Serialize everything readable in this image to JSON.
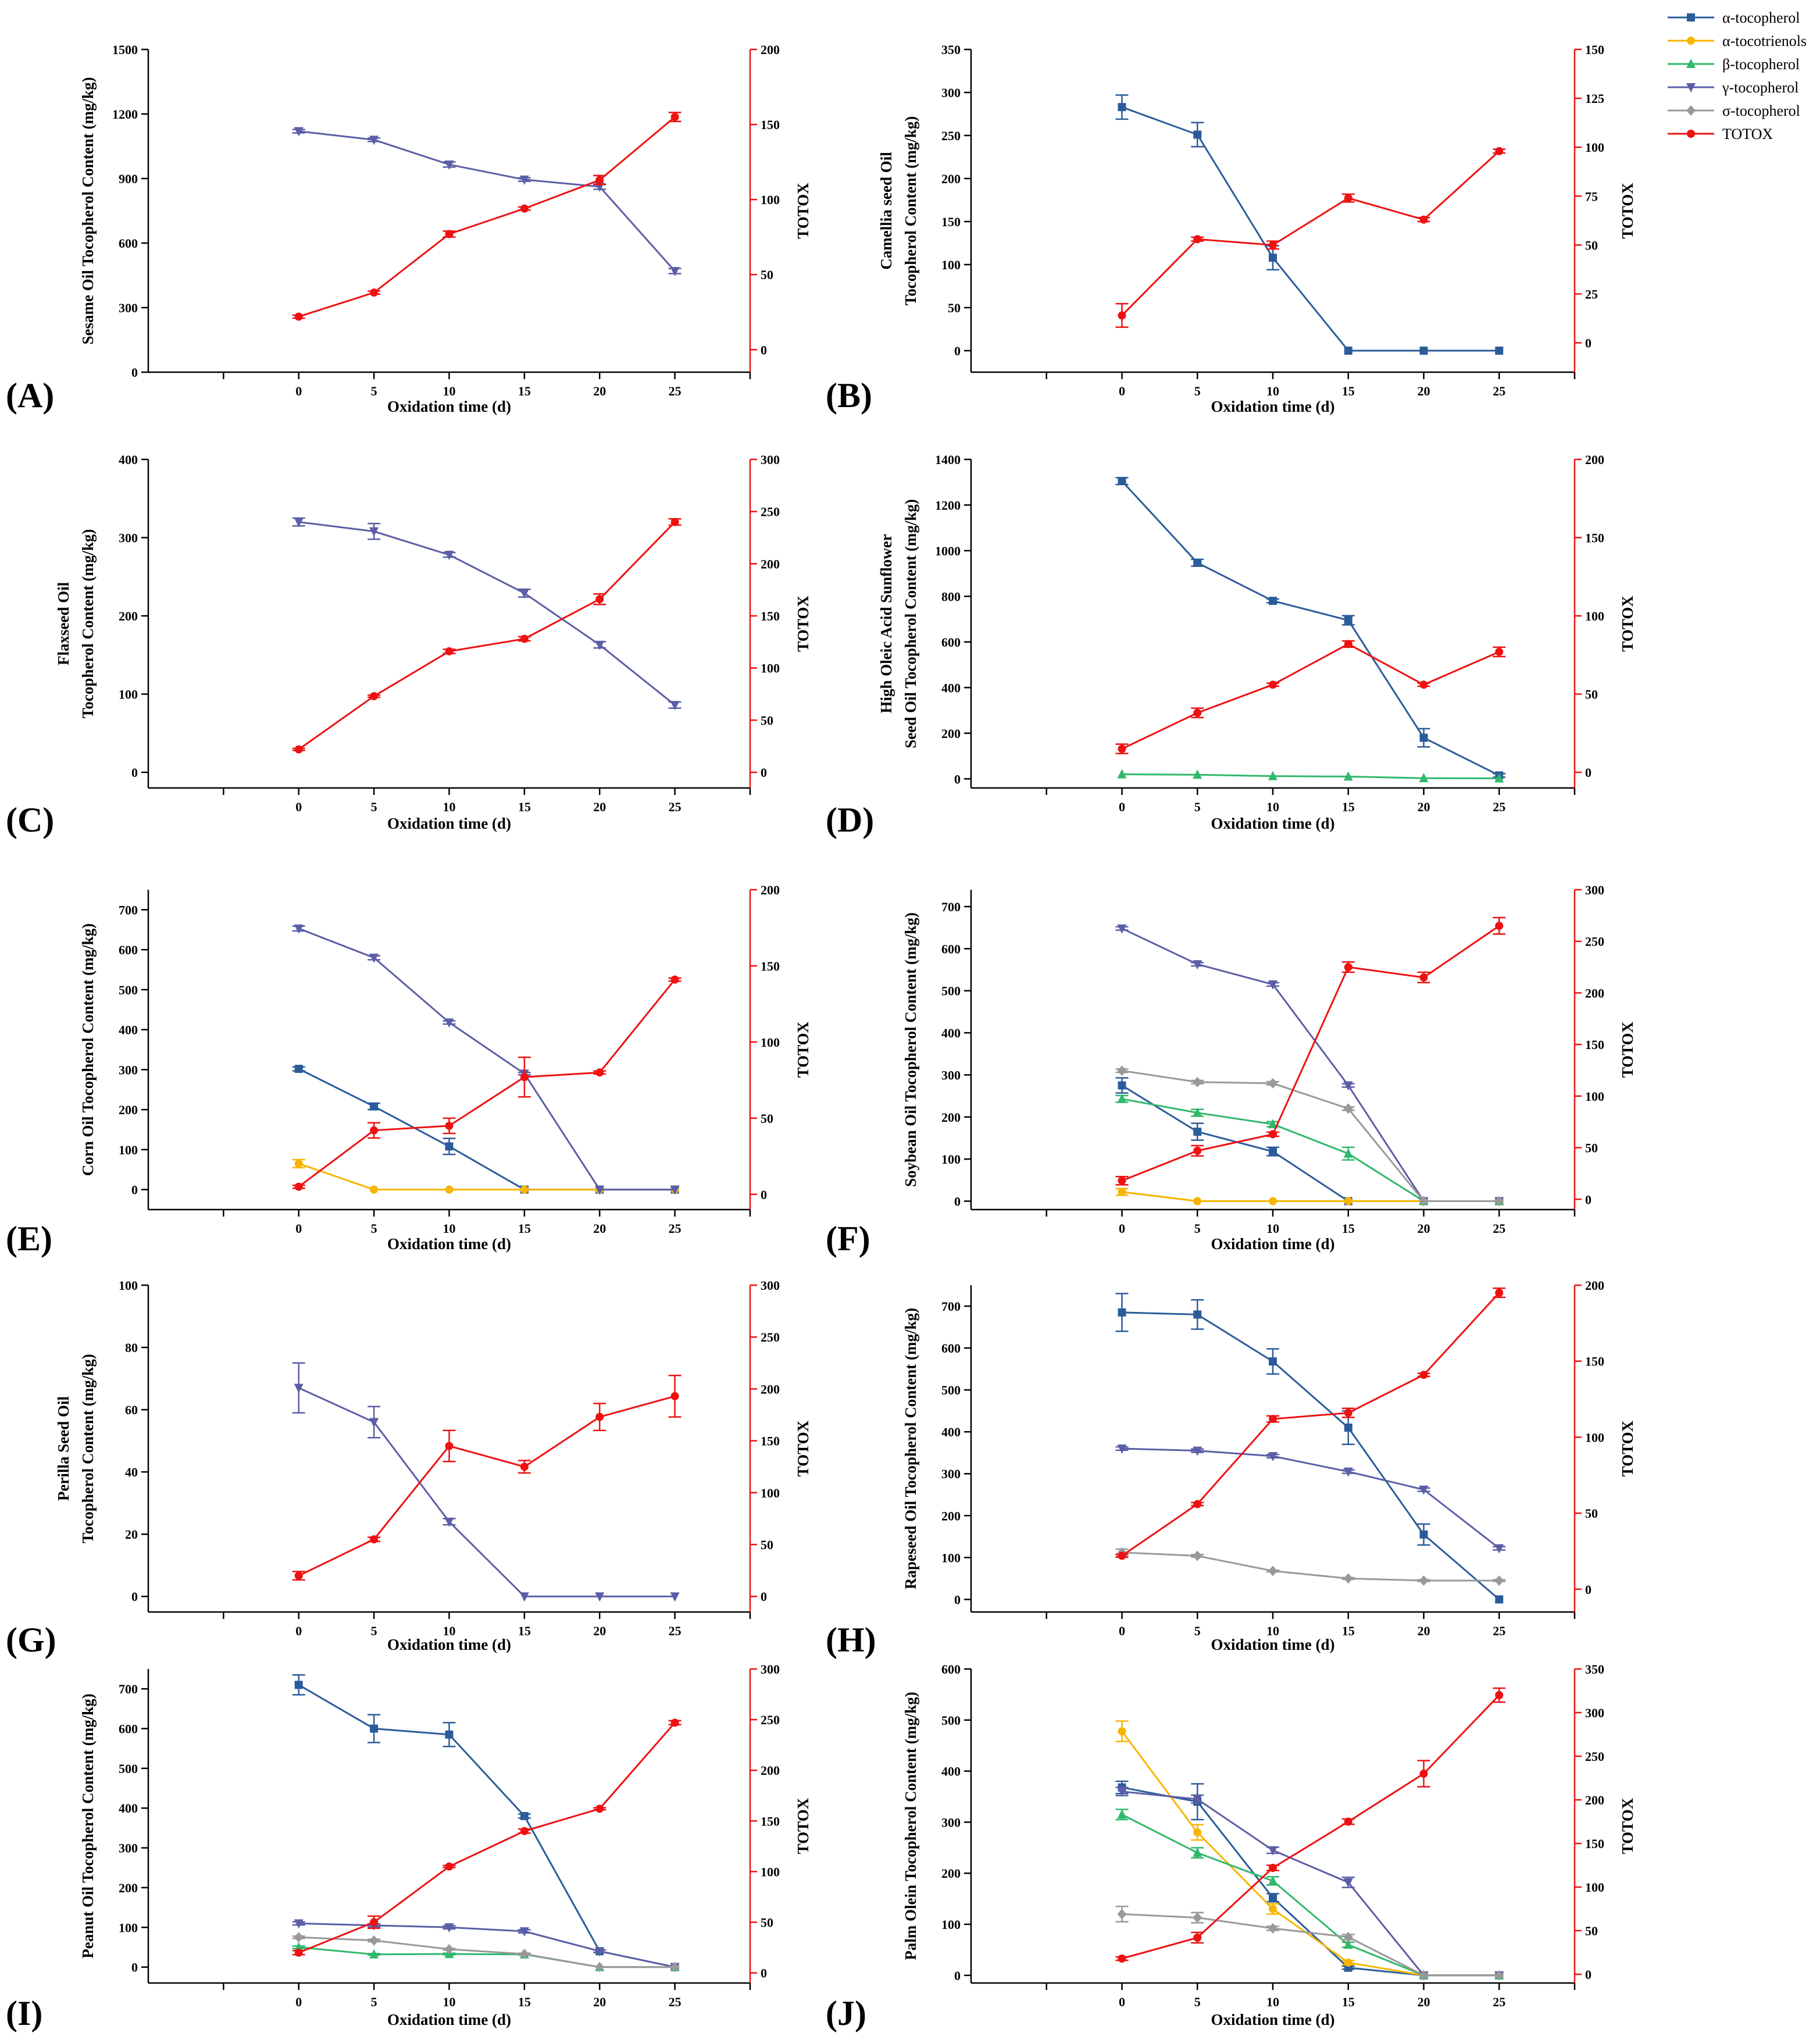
{
  "legend": [
    {
      "name": "α-tocopherol",
      "color": "#2B5C9A",
      "marker": "square"
    },
    {
      "name": "α-tocotrienols",
      "color": "#F7B500",
      "marker": "circle"
    },
    {
      "name": "β-tocopherol",
      "color": "#30B86B",
      "marker": "triangle-up"
    },
    {
      "name": "γ-tocopherol",
      "color": "#5B5EA6",
      "marker": "triangle-down"
    },
    {
      "name": "σ-tocopherol",
      "color": "#999999",
      "marker": "diamond"
    },
    {
      "name": "TOTOX",
      "color": "#EE1111",
      "marker": "circle"
    }
  ],
  "chart_data": [
    {
      "type": "line",
      "panel": "(A)",
      "ylabel": [
        "Sesame Oil Tocopherol Content (mg/kg)"
      ],
      "xlabel": "Oxidation time (d)",
      "y2label": "TOTOX",
      "x": [
        0,
        5,
        10,
        15,
        20,
        25
      ],
      "xlim": [
        -10,
        30
      ],
      "ylim": [
        0,
        1500
      ],
      "yticks": [
        0,
        300,
        600,
        900,
        1200,
        1500
      ],
      "y2lim": [
        -15,
        200
      ],
      "y2ticks": [
        0,
        50,
        100,
        150,
        200
      ],
      "series": [
        {
          "name": "γ-tocopherol",
          "values": [
            1120,
            1080,
            965,
            895,
            862,
            470
          ],
          "err": [
            8,
            8,
            12,
            8,
            12,
            12
          ]
        },
        {
          "name": "TOTOX",
          "values": [
            22,
            38,
            77,
            94,
            113,
            155
          ],
          "err": [
            1,
            1,
            2,
            1,
            3,
            3
          ]
        }
      ]
    },
    {
      "type": "line",
      "panel": "(B)",
      "ylabel": [
        "Camellia seed Oil",
        "Tocopherol Content (mg/kg)"
      ],
      "xlabel": "Oxidation time (d)",
      "y2label": "TOTOX",
      "x": [
        0,
        5,
        10,
        15,
        20,
        25
      ],
      "xlim": [
        -10,
        30
      ],
      "ylim": [
        -25,
        350
      ],
      "yticks": [
        0,
        50,
        100,
        150,
        200,
        250,
        300,
        350
      ],
      "y2lim": [
        -15,
        150
      ],
      "y2ticks": [
        0,
        25,
        50,
        75,
        100,
        125,
        150
      ],
      "series": [
        {
          "name": "α-tocopherol",
          "values": [
            283,
            251,
            108,
            0,
            0,
            0
          ],
          "err": [
            14,
            14,
            14,
            0,
            0,
            0
          ]
        },
        {
          "name": "TOTOX",
          "values": [
            14,
            53,
            50,
            74,
            63,
            98
          ],
          "err": [
            6,
            1,
            2,
            2,
            1,
            1
          ]
        }
      ]
    },
    {
      "type": "line",
      "panel": "(C)",
      "ylabel": [
        "Flaxseed Oil",
        "Tocopherol Content (mg/kg)"
      ],
      "xlabel": "Oxidation time (d)",
      "y2label": "TOTOX",
      "x": [
        0,
        5,
        10,
        15,
        20,
        25
      ],
      "xlim": [
        -10,
        30
      ],
      "ylim": [
        -20,
        400
      ],
      "yticks": [
        0,
        100,
        200,
        300,
        400
      ],
      "y2lim": [
        -15,
        300
      ],
      "y2ticks": [
        0,
        50,
        100,
        150,
        200,
        250,
        300
      ],
      "series": [
        {
          "name": "γ-tocopherol",
          "values": [
            320,
            308,
            278,
            229,
            163,
            86
          ],
          "err": [
            5,
            10,
            3,
            5,
            4,
            4
          ]
        },
        {
          "name": "TOTOX",
          "values": [
            22,
            73,
            116,
            128,
            166,
            240
          ],
          "err": [
            1,
            1,
            2,
            2,
            5,
            3
          ]
        }
      ]
    },
    {
      "type": "line",
      "panel": "(D)",
      "ylabel": [
        "High Oleic Acid Sunflower",
        "Seed Oil Tocopherol Content (mg/kg)"
      ],
      "xlabel": "Oxidation time (d)",
      "y2label": "TOTOX",
      "x": [
        0,
        5,
        10,
        15,
        20,
        25
      ],
      "xlim": [
        -10,
        30
      ],
      "ylim": [
        -40,
        1400
      ],
      "yticks": [
        0,
        200,
        400,
        600,
        800,
        1000,
        1200,
        1400
      ],
      "y2lim": [
        -10,
        200
      ],
      "y2ticks": [
        0,
        50,
        100,
        150,
        200
      ],
      "series": [
        {
          "name": "α-tocopherol",
          "values": [
            1305,
            947,
            780,
            695,
            180,
            15
          ],
          "err": [
            15,
            15,
            8,
            20,
            40,
            8
          ]
        },
        {
          "name": "β-tocopherol",
          "values": [
            20,
            18,
            12,
            10,
            3,
            2
          ],
          "err": [
            0,
            0,
            0,
            0,
            0,
            0
          ]
        },
        {
          "name": "TOTOX",
          "values": [
            15,
            38,
            56,
            82,
            56,
            77
          ],
          "err": [
            3,
            3,
            1,
            2,
            1,
            3
          ]
        }
      ]
    },
    {
      "type": "line",
      "panel": "(E)",
      "ylabel": [
        "Corn Oil Tocopherol Content (mg/kg)"
      ],
      "xlabel": "Oxidation time (d)",
      "y2label": "TOTOX",
      "x": [
        0,
        5,
        10,
        15,
        20,
        25
      ],
      "xlim": [
        -10,
        30
      ],
      "ylim": [
        -50,
        750
      ],
      "yticks": [
        0,
        100,
        200,
        300,
        400,
        500,
        600,
        700
      ],
      "y2lim": [
        -10,
        200
      ],
      "y2ticks": [
        0,
        50,
        100,
        150,
        200
      ],
      "series": [
        {
          "name": "α-tocopherol",
          "values": [
            302,
            208,
            108,
            0,
            0,
            0
          ],
          "err": [
            5,
            8,
            20,
            0,
            0,
            0
          ]
        },
        {
          "name": "α-tocotrienols",
          "values": [
            65,
            0,
            0,
            0,
            0,
            0
          ],
          "err": [
            10,
            0,
            0,
            0,
            0,
            0
          ]
        },
        {
          "name": "γ-tocopherol",
          "values": [
            653,
            580,
            418,
            290,
            0,
            0
          ],
          "err": [
            6,
            5,
            4,
            3,
            0,
            0
          ]
        },
        {
          "name": "TOTOX",
          "values": [
            5,
            42,
            45,
            77,
            80,
            141
          ],
          "err": [
            1,
            5,
            5,
            13,
            1,
            1
          ]
        }
      ]
    },
    {
      "type": "line",
      "panel": "(F)",
      "ylabel": [
        "Soybean Oil Tocopherol Content (mg/kg)"
      ],
      "xlabel": "Oxidation time (d)",
      "y2label": "TOTOX",
      "x": [
        0,
        5,
        10,
        15,
        20,
        25
      ],
      "xlim": [
        -10,
        30
      ],
      "ylim": [
        -20,
        740
      ],
      "yticks": [
        0,
        100,
        200,
        300,
        400,
        500,
        600,
        700
      ],
      "y2lim": [
        -10,
        300
      ],
      "y2ticks": [
        0,
        50,
        100,
        150,
        200,
        250,
        300
      ],
      "series": [
        {
          "name": "α-tocopherol",
          "values": [
            275,
            165,
            118,
            0,
            0,
            0
          ],
          "err": [
            18,
            20,
            10,
            0,
            0,
            0
          ]
        },
        {
          "name": "α-tocotrienols",
          "values": [
            22,
            0,
            0,
            0,
            0,
            0
          ],
          "err": [
            8,
            0,
            0,
            0,
            0,
            0
          ]
        },
        {
          "name": "β-tocopherol",
          "values": [
            243,
            210,
            183,
            113,
            0,
            0
          ],
          "err": [
            8,
            8,
            6,
            15,
            0,
            0
          ]
        },
        {
          "name": "γ-tocopherol",
          "values": [
            648,
            563,
            515,
            275,
            0,
            0
          ],
          "err": [
            4,
            4,
            4,
            4,
            0,
            0
          ]
        },
        {
          "name": "σ-tocopherol",
          "values": [
            310,
            283,
            280,
            220,
            0,
            0
          ],
          "err": [
            4,
            4,
            4,
            4,
            0,
            0
          ]
        },
        {
          "name": "TOTOX",
          "values": [
            18,
            47,
            63,
            225,
            215,
            265
          ],
          "err": [
            4,
            5,
            2,
            5,
            5,
            8
          ]
        }
      ]
    },
    {
      "type": "line",
      "panel": "(G)",
      "ylabel": [
        "Perilla Seed Oil",
        "Tocopherol Content (mg/kg)"
      ],
      "xlabel": "Oxidation time (d)",
      "y2label": "TOTOX",
      "x": [
        0,
        5,
        10,
        15,
        20,
        25
      ],
      "xlim": [
        -10,
        30
      ],
      "ylim": [
        -5,
        100
      ],
      "yticks": [
        0,
        20,
        40,
        60,
        80,
        100
      ],
      "y2lim": [
        -15,
        300
      ],
      "y2ticks": [
        0,
        50,
        100,
        150,
        200,
        250,
        300
      ],
      "series": [
        {
          "name": "γ-tocopherol",
          "values": [
            67,
            56,
            24,
            0,
            0,
            0
          ],
          "err": [
            8,
            5,
            1,
            0,
            0,
            0
          ]
        },
        {
          "name": "TOTOX",
          "values": [
            20,
            55,
            145,
            125,
            173,
            193
          ],
          "err": [
            4,
            2,
            15,
            6,
            13,
            20
          ]
        }
      ]
    },
    {
      "type": "line",
      "panel": "(H)",
      "ylabel": [
        "Rapeseed Oil Tocopherol Content (mg/kg)"
      ],
      "xlabel": "Oxidation time (d)",
      "y2label": "TOTOX",
      "x": [
        0,
        5,
        10,
        15,
        20,
        25
      ],
      "xlim": [
        -10,
        30
      ],
      "ylim": [
        -30,
        750
      ],
      "yticks": [
        0,
        100,
        200,
        300,
        400,
        500,
        600,
        700
      ],
      "y2lim": [
        -15,
        200
      ],
      "y2ticks": [
        0,
        50,
        100,
        150,
        200
      ],
      "series": [
        {
          "name": "α-tocopherol",
          "values": [
            685,
            680,
            568,
            410,
            155,
            0
          ],
          "err": [
            45,
            35,
            30,
            40,
            25,
            0
          ]
        },
        {
          "name": "γ-tocopherol",
          "values": [
            360,
            355,
            342,
            305,
            262,
            122
          ],
          "err": [
            4,
            4,
            4,
            4,
            4,
            4
          ]
        },
        {
          "name": "σ-tocopherol",
          "values": [
            112,
            104,
            68,
            50,
            45,
            45
          ],
          "err": [
            8,
            3,
            2,
            2,
            2,
            2
          ]
        },
        {
          "name": "TOTOX",
          "values": [
            22,
            56,
            112,
            116,
            141,
            195
          ],
          "err": [
            1,
            1,
            2,
            3,
            1,
            3
          ]
        }
      ]
    },
    {
      "type": "line",
      "panel": "(I)",
      "ylabel": [
        "Peanut Oil Tocopherol Content (mg/kg)"
      ],
      "xlabel": "Oxidation time (d)",
      "y2label": "TOTOX",
      "x": [
        0,
        5,
        10,
        15,
        20,
        25
      ],
      "xlim": [
        -10,
        30
      ],
      "ylim": [
        -40,
        750
      ],
      "yticks": [
        0,
        100,
        200,
        300,
        400,
        500,
        600,
        700
      ],
      "y2lim": [
        -10,
        300
      ],
      "y2ticks": [
        0,
        50,
        100,
        150,
        200,
        250,
        300
      ],
      "series": [
        {
          "name": "α-tocopherol",
          "values": [
            710,
            600,
            585,
            380,
            40,
            0
          ],
          "err": [
            25,
            35,
            30,
            5,
            3,
            0
          ]
        },
        {
          "name": "β-tocopherol",
          "values": [
            50,
            32,
            33,
            32,
            0,
            0
          ],
          "err": [
            3,
            2,
            2,
            2,
            0,
            0
          ]
        },
        {
          "name": "γ-tocopherol",
          "values": [
            110,
            105,
            100,
            90,
            40,
            0
          ],
          "err": [
            4,
            4,
            4,
            4,
            3,
            0
          ]
        },
        {
          "name": "σ-tocopherol",
          "values": [
            75,
            67,
            45,
            33,
            0,
            0
          ],
          "err": [
            3,
            3,
            2,
            2,
            0,
            0
          ]
        },
        {
          "name": "TOTOX",
          "values": [
            20,
            50,
            105,
            140,
            162,
            247
          ],
          "err": [
            2,
            6,
            1,
            2,
            1,
            2
          ]
        }
      ]
    },
    {
      "type": "line",
      "panel": "(J)",
      "ylabel": [
        "Palm Olein Tocopherol Content (mg/kg)"
      ],
      "xlabel": "Oxidation time (d)",
      "y2label": "TOTOX",
      "x": [
        0,
        5,
        10,
        15,
        20,
        25
      ],
      "xlim": [
        -10,
        30
      ],
      "ylim": [
        -15,
        600
      ],
      "yticks": [
        0,
        100,
        200,
        300,
        400,
        500,
        600
      ],
      "y2lim": [
        -10,
        350
      ],
      "y2ticks": [
        0,
        50,
        100,
        150,
        200,
        250,
        300,
        350
      ],
      "series": [
        {
          "name": "α-tocopherol",
          "values": [
            368,
            340,
            152,
            15,
            0,
            0
          ],
          "err": [
            12,
            35,
            8,
            3,
            0,
            0
          ]
        },
        {
          "name": "α-tocotrienols",
          "values": [
            478,
            280,
            130,
            25,
            0,
            0
          ],
          "err": [
            20,
            15,
            10,
            4,
            0,
            0
          ]
        },
        {
          "name": "β-tocopherol",
          "values": [
            315,
            240,
            185,
            60,
            0,
            0
          ],
          "err": [
            10,
            10,
            8,
            5,
            0,
            0
          ]
        },
        {
          "name": "γ-tocopherol",
          "values": [
            360,
            345,
            245,
            182,
            0,
            0
          ],
          "err": [
            8,
            8,
            6,
            10,
            0,
            0
          ]
        },
        {
          "name": "σ-tocopherol",
          "values": [
            120,
            113,
            92,
            75,
            0,
            0
          ],
          "err": [
            15,
            10,
            4,
            5,
            0,
            0
          ]
        },
        {
          "name": "TOTOX",
          "values": [
            18,
            42,
            122,
            175,
            230,
            320
          ],
          "err": [
            2,
            6,
            3,
            3,
            15,
            8
          ]
        }
      ]
    }
  ]
}
